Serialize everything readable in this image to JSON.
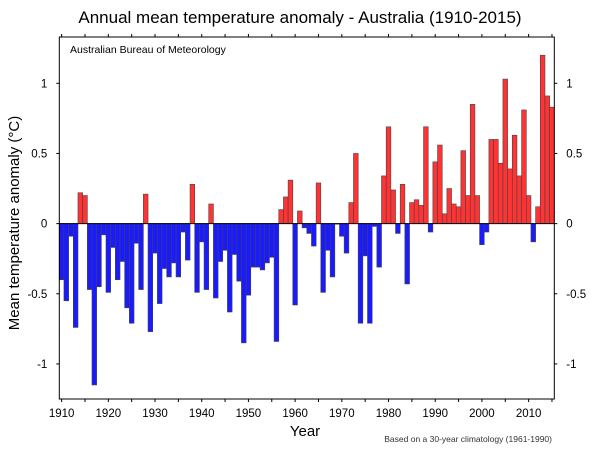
{
  "chart_data": {
    "type": "bar",
    "title": "Annual mean temperature anomaly - Australia (1910-2015)",
    "xlabel": "Year",
    "ylabel": "Mean temperature anomaly (°C)",
    "source_label": "Australian Bureau of Meteorology",
    "footnote": "Based on a 30-year climatology (1961-1990)",
    "x_start": 1910,
    "x_end": 2015,
    "xlim": [
      1910,
      2015
    ],
    "ylim": [
      -1.25,
      1.33
    ],
    "x_ticks": [
      1910,
      1920,
      1930,
      1940,
      1950,
      1960,
      1970,
      1980,
      1990,
      2000,
      2010
    ],
    "x_tick_labels": [
      "1910",
      "1920",
      "1930",
      "1940",
      "1950",
      "1960",
      "1970",
      "1980",
      "1990",
      "2000",
      "2010"
    ],
    "x_minor_tick_step": 5,
    "y_ticks": [
      1,
      0.5,
      0,
      -0.5,
      -1
    ],
    "y_tick_labels": [
      "1",
      "0.5",
      "0",
      "-0.5",
      "-1"
    ],
    "grid": false,
    "colors": {
      "positive": "#ff3333",
      "negative": "#1a1aff",
      "bar_edge": "#444444"
    },
    "years": [
      1910,
      1911,
      1912,
      1913,
      1914,
      1915,
      1916,
      1917,
      1918,
      1919,
      1920,
      1921,
      1922,
      1923,
      1924,
      1925,
      1926,
      1927,
      1928,
      1929,
      1930,
      1931,
      1932,
      1933,
      1934,
      1935,
      1936,
      1937,
      1938,
      1939,
      1940,
      1941,
      1942,
      1943,
      1944,
      1945,
      1946,
      1947,
      1948,
      1949,
      1950,
      1951,
      1952,
      1953,
      1954,
      1955,
      1956,
      1957,
      1958,
      1959,
      1960,
      1961,
      1962,
      1963,
      1964,
      1965,
      1966,
      1967,
      1968,
      1969,
      1970,
      1971,
      1972,
      1973,
      1974,
      1975,
      1976,
      1977,
      1978,
      1979,
      1980,
      1981,
      1982,
      1983,
      1984,
      1985,
      1986,
      1987,
      1988,
      1989,
      1990,
      1991,
      1992,
      1993,
      1994,
      1995,
      1996,
      1997,
      1998,
      1999,
      2000,
      2001,
      2002,
      2003,
      2004,
      2005,
      2006,
      2007,
      2008,
      2009,
      2010,
      2011,
      2012,
      2013,
      2014,
      2015
    ],
    "values": [
      -0.4,
      -0.55,
      -0.09,
      -0.74,
      0.22,
      0.2,
      -0.47,
      -1.15,
      -0.45,
      -0.08,
      -0.49,
      -0.17,
      -0.4,
      -0.27,
      -0.6,
      -0.71,
      -0.14,
      -0.47,
      0.21,
      -0.77,
      -0.21,
      -0.57,
      -0.32,
      -0.38,
      -0.28,
      -0.38,
      -0.06,
      -0.26,
      0.28,
      -0.49,
      -0.13,
      -0.47,
      0.14,
      -0.53,
      -0.27,
      -0.19,
      -0.63,
      -0.22,
      -0.41,
      -0.85,
      -0.51,
      -0.31,
      -0.31,
      -0.33,
      -0.28,
      -0.24,
      -0.84,
      0.1,
      0.19,
      0.31,
      -0.58,
      0.09,
      -0.03,
      -0.07,
      -0.16,
      0.29,
      -0.49,
      -0.19,
      -0.38,
      0.0,
      -0.09,
      -0.21,
      0.15,
      0.5,
      -0.71,
      -0.23,
      -0.71,
      -0.02,
      -0.31,
      0.34,
      0.69,
      0.24,
      -0.07,
      0.28,
      -0.43,
      0.15,
      0.17,
      0.13,
      0.69,
      -0.06,
      0.44,
      0.56,
      0.07,
      0.25,
      0.14,
      0.12,
      0.52,
      0.2,
      0.85,
      0.2,
      -0.15,
      -0.06,
      0.6,
      0.6,
      0.43,
      1.03,
      0.39,
      0.63,
      0.34,
      0.81,
      0.2,
      -0.13,
      0.12,
      1.2,
      0.91,
      0.83
    ]
  }
}
